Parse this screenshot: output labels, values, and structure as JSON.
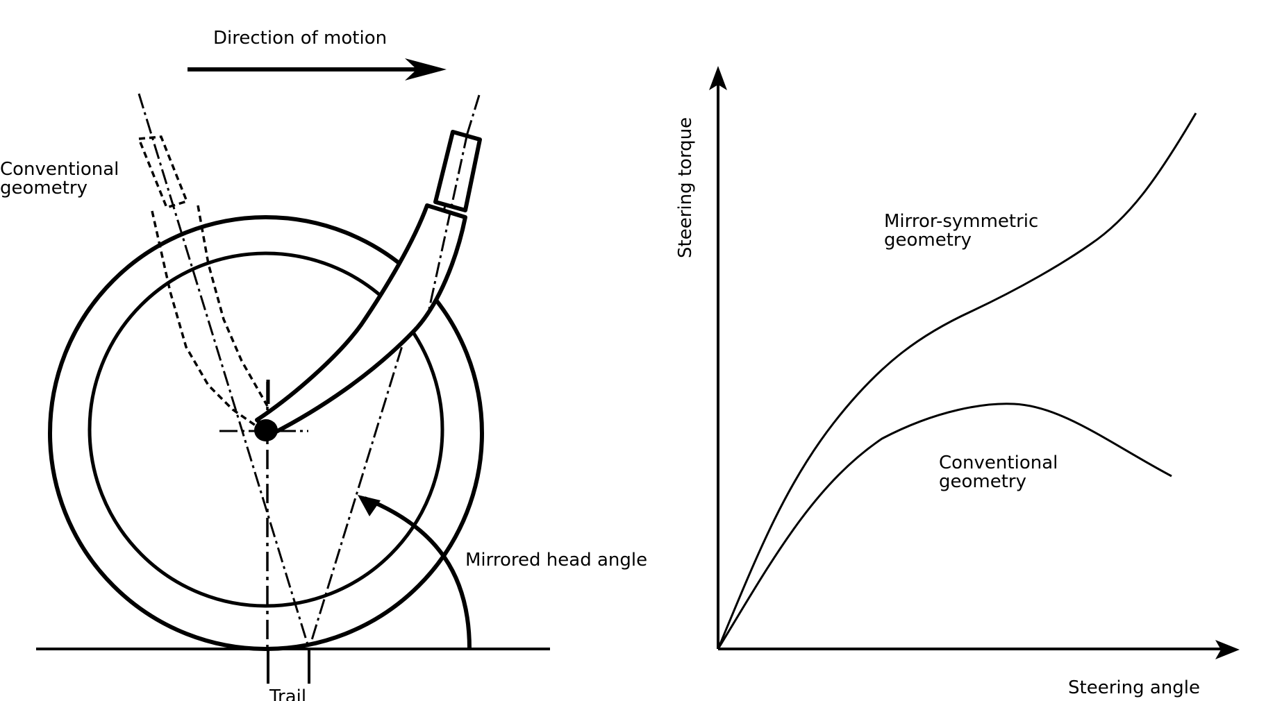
{
  "diagram": {
    "direction_label": "Direction of motion",
    "conventional_label_line1": "Conventional",
    "conventional_label_line2": "geometry",
    "head_angle_label": "Mirrored head angle",
    "trail_label": "Trail"
  },
  "graph": {
    "y_axis_label": "Steering torque",
    "x_axis_label": "Steering angle",
    "mirror_curve_label_line1": "Mirror-symmetric",
    "mirror_curve_label_line2": "geometry",
    "conventional_curve_label_line1": "Conventional",
    "conventional_curve_label_line2": "geometry"
  },
  "colors": {
    "ink": "#000000",
    "background": "#ffffff"
  }
}
